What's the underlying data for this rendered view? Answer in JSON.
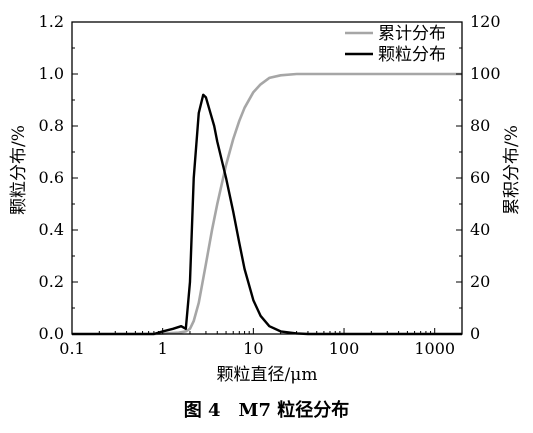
{
  "caption": "图 4　M7 粒径分布",
  "chart_data": {
    "type": "line",
    "x_scale": "log",
    "xlim": [
      0.1,
      2000
    ],
    "ylim": [
      0,
      1.2
    ],
    "y2lim": [
      0,
      120
    ],
    "xlabel": "颗粒直径/μm",
    "ylabel": "颗粒分布/%",
    "y2label": "累积分布/%",
    "x_ticks": [
      "0.1",
      "1",
      "10",
      "100",
      "1000"
    ],
    "y_ticks": [
      "0.0",
      "0.2",
      "0.4",
      "0.6",
      "0.8",
      "1.0",
      "1.2"
    ],
    "y2_ticks": [
      "0",
      "20",
      "40",
      "60",
      "80",
      "100",
      "120"
    ],
    "grid": false,
    "legend_position": "top-right",
    "series": [
      {
        "name": "累计分布",
        "axis": "right",
        "color": "#a6a6a6",
        "x": [
          0.8,
          1.5,
          1.8,
          2.0,
          2.2,
          2.5,
          3.0,
          3.5,
          4.0,
          5.0,
          6.0,
          7.0,
          8.0,
          10.0,
          12.0,
          15.0,
          20.0,
          30.0,
          50.0,
          2000.0
        ],
        "y": [
          0,
          0.5,
          1,
          2,
          5,
          12,
          27,
          40,
          50,
          65,
          75,
          82,
          87,
          93,
          96,
          98.5,
          99.5,
          100,
          100,
          100
        ]
      },
      {
        "name": "颗粒分布",
        "axis": "left",
        "color": "#000000",
        "x": [
          0.1,
          0.8,
          1.0,
          1.3,
          1.6,
          1.8,
          2.0,
          2.2,
          2.5,
          2.8,
          3.0,
          3.3,
          3.7,
          4.0,
          5.0,
          6.0,
          7.0,
          8.0,
          10.0,
          12.0,
          15.0,
          20.0,
          30.0,
          40.0,
          2000.0
        ],
        "y": [
          0,
          0,
          0.01,
          0.02,
          0.03,
          0.02,
          0.2,
          0.6,
          0.85,
          0.92,
          0.91,
          0.86,
          0.8,
          0.74,
          0.6,
          0.47,
          0.35,
          0.25,
          0.13,
          0.07,
          0.03,
          0.01,
          0.002,
          0,
          0
        ]
      }
    ]
  }
}
